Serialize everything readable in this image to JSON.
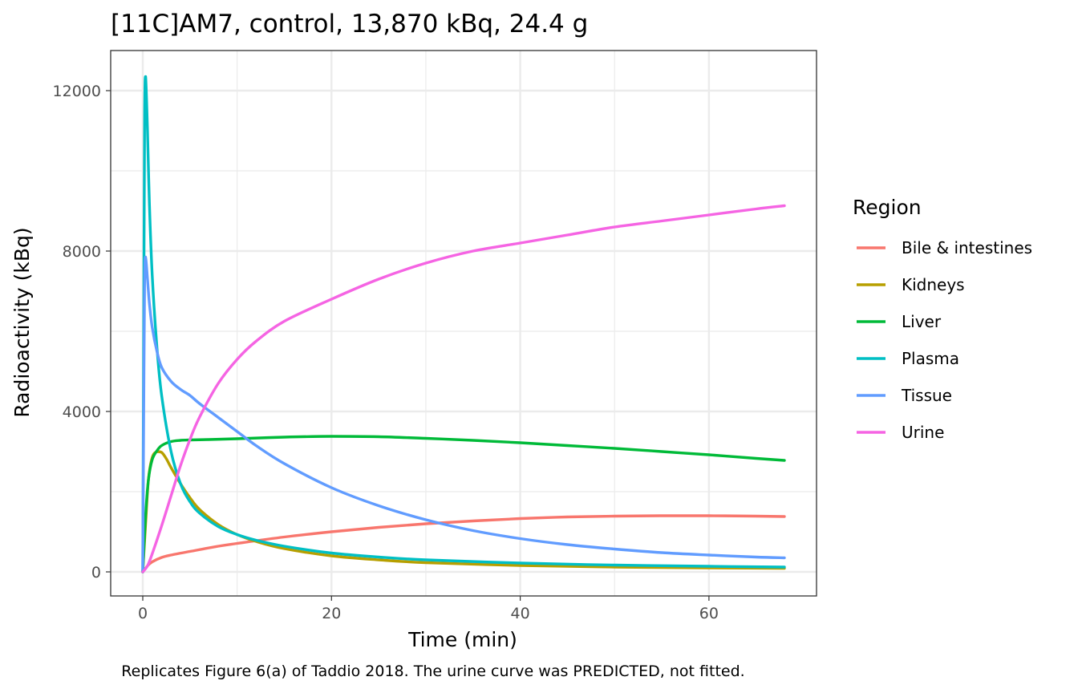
{
  "chart_data": {
    "type": "line",
    "title": "[11C]AM7, control, 13,870 kBq, 24.4 g",
    "xlabel": "Time (min)",
    "ylabel": "Radioactivity (kBq)",
    "caption": "Replicates Figure 6(a) of Taddio 2018. The urine curve was PREDICTED, not fitted.",
    "xlim": [
      -3.4,
      71.4
    ],
    "ylim": [
      -600,
      13000
    ],
    "xticks": [
      0,
      20,
      40,
      60
    ],
    "xtick_labels": [
      "0",
      "20",
      "40",
      "60"
    ],
    "yticks": [
      0,
      4000,
      8000,
      12000
    ],
    "ytick_labels": [
      "0",
      "4000",
      "8000",
      "12000"
    ],
    "grid": true,
    "legend": {
      "title": "Region",
      "position": "right"
    },
    "series": [
      {
        "name": "Bile & intestines",
        "color": "#F8766D",
        "x": [
          0,
          0.5,
          1,
          2,
          3,
          5,
          8,
          10,
          15,
          20,
          25,
          30,
          35,
          40,
          45,
          50,
          55,
          60,
          65,
          68
        ],
        "y": [
          0,
          150,
          250,
          360,
          420,
          510,
          640,
          710,
          870,
          1000,
          1110,
          1200,
          1270,
          1330,
          1370,
          1390,
          1400,
          1400,
          1390,
          1380
        ]
      },
      {
        "name": "Kidneys",
        "color": "#B79F00",
        "x": [
          0,
          0.3,
          0.6,
          1,
          1.5,
          2,
          2.5,
          3,
          4,
          5,
          6,
          8,
          10,
          12,
          15,
          20,
          25,
          30,
          40,
          50,
          60,
          68
        ],
        "y": [
          0,
          1200,
          2300,
          2850,
          3000,
          2980,
          2820,
          2600,
          2200,
          1850,
          1560,
          1180,
          930,
          760,
          580,
          400,
          300,
          230,
          160,
          120,
          100,
          90
        ]
      },
      {
        "name": "Liver",
        "color": "#00BA38",
        "x": [
          0,
          0.3,
          0.6,
          1,
          1.5,
          2,
          3,
          4,
          5,
          7,
          10,
          15,
          20,
          25,
          30,
          35,
          40,
          45,
          50,
          55,
          60,
          65,
          68
        ],
        "y": [
          0,
          1400,
          2300,
          2800,
          3020,
          3150,
          3250,
          3280,
          3290,
          3300,
          3320,
          3360,
          3380,
          3370,
          3330,
          3280,
          3220,
          3150,
          3080,
          3000,
          2920,
          2830,
          2780
        ]
      },
      {
        "name": "Plasma",
        "color": "#00BFC4",
        "x": [
          0,
          0.1,
          0.2,
          0.3,
          0.5,
          0.7,
          1,
          1.5,
          2,
          3,
          4,
          5,
          6,
          8,
          10,
          12,
          15,
          20,
          25,
          30,
          40,
          50,
          60,
          68
        ],
        "y": [
          0,
          6000,
          11500,
          12350,
          11000,
          9200,
          7400,
          5600,
          4400,
          3000,
          2200,
          1750,
          1470,
          1130,
          930,
          790,
          640,
          470,
          370,
          300,
          220,
          170,
          140,
          120
        ]
      },
      {
        "name": "Tissue",
        "color": "#619CFF",
        "x": [
          0,
          0.1,
          0.2,
          0.3,
          0.5,
          0.7,
          1,
          1.5,
          2,
          3,
          4,
          5,
          6,
          8,
          10,
          12,
          15,
          20,
          25,
          30,
          35,
          40,
          45,
          50,
          55,
          60,
          65,
          68
        ],
        "y": [
          0,
          4000,
          7400,
          7850,
          7300,
          6700,
          6100,
          5500,
          5100,
          4750,
          4550,
          4400,
          4200,
          3850,
          3500,
          3150,
          2700,
          2100,
          1650,
          1300,
          1030,
          830,
          680,
          570,
          480,
          420,
          370,
          350
        ]
      },
      {
        "name": "Urine",
        "color": "#F564E3",
        "x": [
          0,
          0.5,
          1,
          2,
          3,
          4,
          5,
          6,
          8,
          10,
          12,
          15,
          20,
          25,
          30,
          35,
          40,
          45,
          50,
          55,
          60,
          65,
          68
        ],
        "y": [
          0,
          150,
          450,
          1150,
          1900,
          2650,
          3300,
          3850,
          4700,
          5300,
          5750,
          6250,
          6800,
          7300,
          7700,
          8000,
          8200,
          8400,
          8600,
          8750,
          8900,
          9050,
          9130
        ]
      }
    ]
  }
}
